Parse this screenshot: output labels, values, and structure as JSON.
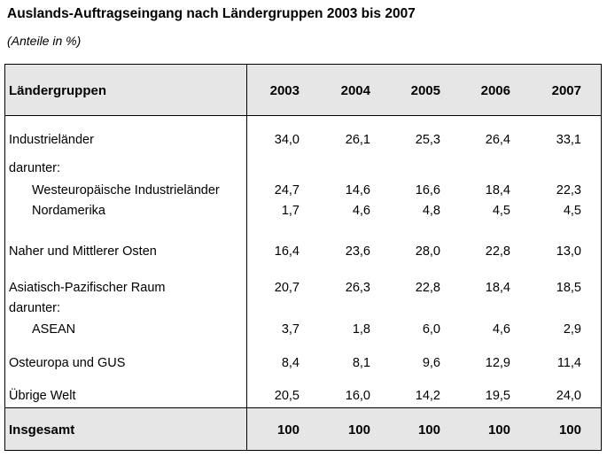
{
  "header": {
    "title": "Auslands-Auftragseingang nach Ländergruppen 2003 bis 2007",
    "subtitle": "(Anteile in %)"
  },
  "table": {
    "columns": [
      "Ländergruppen",
      "2003",
      "2004",
      "2005",
      "2006",
      "2007"
    ],
    "rows": [
      [
        "Industrieländer",
        "34,0",
        "26,1",
        "25,3",
        "26,4",
        "33,1"
      ],
      [
        "darunter:"
      ],
      [
        "Westeuropäische Industrieländer",
        "24,7",
        "14,6",
        "16,6",
        "18,4",
        "22,3"
      ],
      [
        "Nordamerika",
        "1,7",
        "4,6",
        "4,8",
        "4,5",
        "4,5"
      ],
      [
        "Naher und Mittlerer Osten",
        "16,4",
        "23,6",
        "28,0",
        "22,8",
        "13,0"
      ],
      [
        "Asiatisch-Pazifischer Raum",
        "20,7",
        "26,3",
        "22,8",
        "18,4",
        "18,5"
      ],
      [
        "darunter:"
      ],
      [
        "ASEAN",
        "3,7",
        "1,8",
        "6,0",
        "4,6",
        "2,9"
      ],
      [
        "Osteuropa und GUS",
        "8,4",
        "8,1",
        "9,6",
        "12,9",
        "11,4"
      ],
      [
        "Übrige Welt",
        "20,5",
        "16,0",
        "14,2",
        "19,5",
        "24,0"
      ]
    ],
    "total": [
      "Insgesamt",
      "100",
      "100",
      "100",
      "100",
      "100"
    ]
  }
}
